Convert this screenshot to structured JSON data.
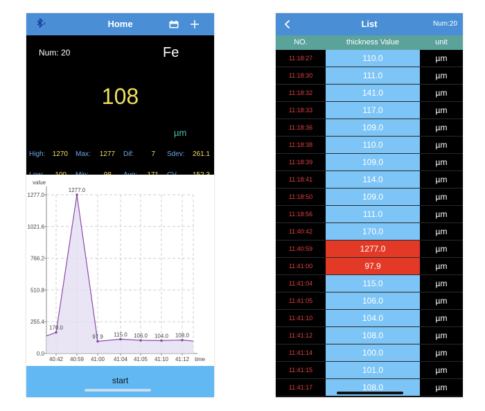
{
  "home": {
    "title": "Home",
    "num_label": "Num: 20",
    "material": "Fe",
    "reading": "108",
    "unit": "µm",
    "stats": {
      "high_label": "High:",
      "high_value": "1270",
      "max_label": "Max:",
      "max_value": "1277",
      "dif_label": "Dif:",
      "dif_value": "7",
      "sdev_label": "Sdev:",
      "sdev_value": "261.1",
      "low_label": "Low:",
      "low_value": "100",
      "min_label": "Min:",
      "min_value": "98",
      "avg_label": "Avg:",
      "avg_value": "171",
      "cv_label": "CV...",
      "cv_value": "152.3"
    },
    "start_label": "start",
    "icons": {
      "left": "bluetooth-icon",
      "calendar": "calendar-icon",
      "add": "plus-icon"
    },
    "colors": {
      "nav": "#4a8fd6",
      "reading": "#f0e060",
      "unit": "#45c5b0",
      "stat_label": "#6fa8e8",
      "start_bar": "#62b8f3"
    }
  },
  "chart_data": {
    "type": "area",
    "ylabel": "value",
    "xlabel": "time",
    "yticks": [
      "0.0",
      "255.4",
      "510.8",
      "766.2",
      "1021.6",
      "1277.0"
    ],
    "ylim": [
      0,
      1277
    ],
    "categories": [
      "",
      "40:42",
      "40:59",
      "41:00",
      "41:04",
      "41:05",
      "41:10",
      "41:12",
      ""
    ],
    "values": [
      141,
      170,
      1277,
      97.9,
      115,
      106,
      104,
      108,
      100
    ],
    "point_labels": [
      "",
      "170.0",
      "1277.0",
      "97.9",
      "115.0",
      "106.0",
      "104.0",
      "108.0",
      ""
    ],
    "grid": true,
    "line_color": "#8a4aa8",
    "fill_color": "#e4def2"
  },
  "list": {
    "title": "List",
    "count": "Num:20",
    "columns": [
      "NO.",
      "thickness Value",
      "unit"
    ],
    "rows": [
      {
        "time": "11:18:27",
        "value": "110.0",
        "unit": "µm",
        "alert": false
      },
      {
        "time": "11:18:30",
        "value": "111.0",
        "unit": "µm",
        "alert": false
      },
      {
        "time": "11:18:32",
        "value": "141.0",
        "unit": "µm",
        "alert": false
      },
      {
        "time": "11:18:33",
        "value": "117.0",
        "unit": "µm",
        "alert": false
      },
      {
        "time": "11:18:36",
        "value": "109.0",
        "unit": "µm",
        "alert": false
      },
      {
        "time": "11:18:38",
        "value": "110.0",
        "unit": "µm",
        "alert": false
      },
      {
        "time": "11:18:39",
        "value": "109.0",
        "unit": "µm",
        "alert": false
      },
      {
        "time": "11:18:41",
        "value": "114.0",
        "unit": "µm",
        "alert": false
      },
      {
        "time": "11:18:50",
        "value": "109.0",
        "unit": "µm",
        "alert": false
      },
      {
        "time": "11:18:56",
        "value": "111.0",
        "unit": "µm",
        "alert": false
      },
      {
        "time": "11:40:42",
        "value": "170.0",
        "unit": "µm",
        "alert": false
      },
      {
        "time": "11:40:59",
        "value": "1277.0",
        "unit": "µm",
        "alert": true
      },
      {
        "time": "11:41:00",
        "value": "97.9",
        "unit": "µm",
        "alert": true
      },
      {
        "time": "11:41:04",
        "value": "115.0",
        "unit": "µm",
        "alert": false
      },
      {
        "time": "11:41:05",
        "value": "106.0",
        "unit": "µm",
        "alert": false
      },
      {
        "time": "11:41:10",
        "value": "104.0",
        "unit": "µm",
        "alert": false
      },
      {
        "time": "11:41:12",
        "value": "108.0",
        "unit": "µm",
        "alert": false
      },
      {
        "time": "11:41:14",
        "value": "100.0",
        "unit": "µm",
        "alert": false
      },
      {
        "time": "11:41:15",
        "value": "101.0",
        "unit": "µm",
        "alert": false
      },
      {
        "time": "11:41:17",
        "value": "108.0",
        "unit": "µm",
        "alert": false
      }
    ],
    "icons": {
      "back": "chevron-left-icon"
    },
    "colors": {
      "header_row": "#5aa29a",
      "value_cell": "#7ec5f7",
      "alert_cell": "#e33a27",
      "time_text": "#e04040"
    }
  }
}
